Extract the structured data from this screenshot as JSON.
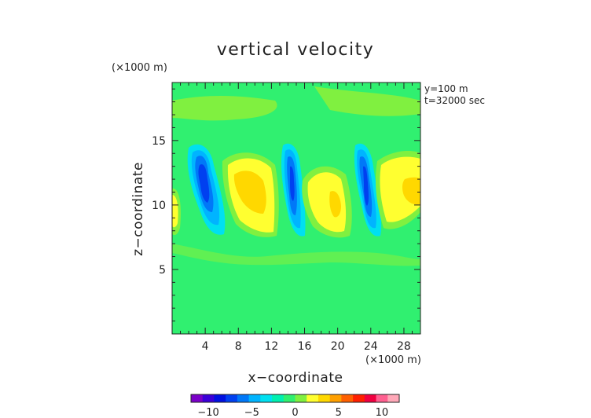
{
  "chart_data": {
    "type": "heatmap",
    "title": "vertical velocity",
    "xlabel": "x−coordinate",
    "ylabel": "z−coordinate",
    "x_unit": "(×1000 m)",
    "y_unit": "(×1000 m)",
    "annotations": [
      "y=100 m",
      "t=32000 sec"
    ],
    "xlim": [
      0,
      30
    ],
    "ylim": [
      0,
      19.5
    ],
    "x_ticks": [
      4,
      8,
      12,
      16,
      20,
      24,
      28
    ],
    "y_ticks": [
      5,
      10,
      15
    ],
    "colorbar": {
      "range": [
        -12,
        12
      ],
      "ticks": [
        -10,
        -5,
        0,
        5,
        10
      ],
      "tick_labels": [
        "−10",
        "−5",
        "0",
        "5",
        "10"
      ],
      "colors": [
        "#7a00c8",
        "#3a00d8",
        "#0010e0",
        "#0040f0",
        "#0078f8",
        "#00b4ff",
        "#00e0f0",
        "#00f0b0",
        "#30f070",
        "#80f040",
        "#ffff30",
        "#ffd800",
        "#ffa000",
        "#ff6000",
        "#ff2000",
        "#f00040",
        "#ff6090",
        "#ffa8b8"
      ]
    },
    "background_value": 0,
    "features": [
      {
        "value": -9,
        "x": 4.5,
        "z": 12.0
      },
      {
        "value": 6,
        "x": 9.5,
        "z": 11.5
      },
      {
        "value": -8,
        "x": 14.5,
        "z": 12.0
      },
      {
        "value": 6,
        "x": 19.5,
        "z": 11.0
      },
      {
        "value": -8,
        "x": 23.5,
        "z": 11.5
      },
      {
        "value": 6,
        "x": 29.0,
        "z": 12.0
      },
      {
        "value": 4,
        "x": 0.5,
        "z": 10.0
      }
    ]
  }
}
